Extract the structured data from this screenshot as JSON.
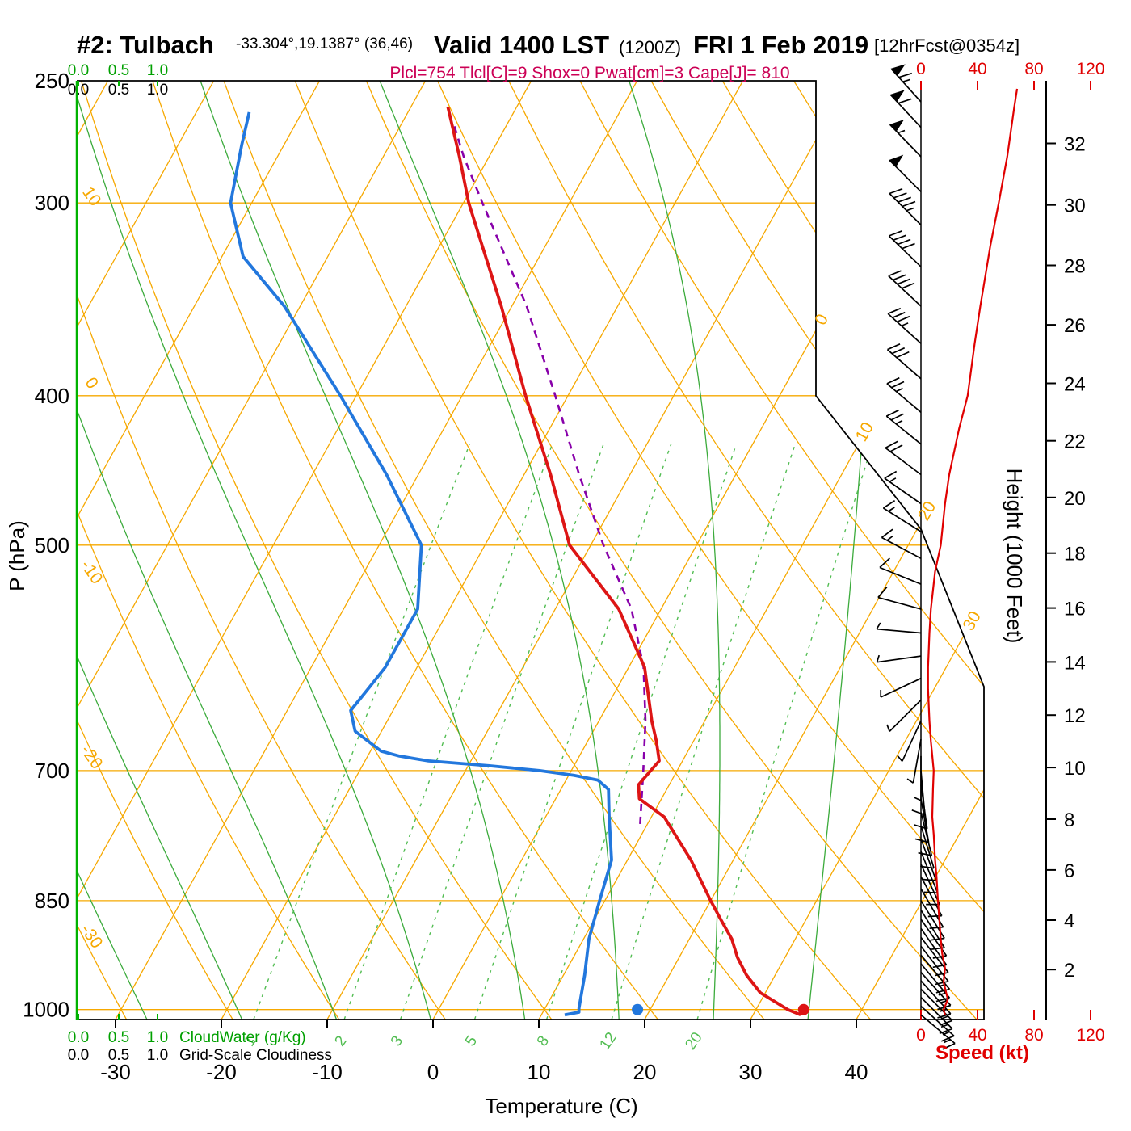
{
  "header": {
    "station": "#2: Tulbach",
    "coords": "-33.304°,19.1387° (36,46)",
    "valid": "Valid 1400 LST",
    "valid_z": "(1200Z)",
    "date": "FRI 1 Feb 2019",
    "fcst": "[12hrFcst@0354z]",
    "indices": "Plcl=754 Tlcl[C]=9 Shox=0 Pwat[cm]=3 Cape[J]= 810"
  },
  "axes": {
    "pressure_label": "P (hPa)",
    "pressure_ticks": [
      250,
      300,
      400,
      500,
      700,
      850,
      1000
    ],
    "temp_label": "Temperature (C)",
    "temp_ticks": [
      -30,
      -20,
      -10,
      0,
      10,
      20,
      30,
      40
    ],
    "height_label": "Height (1000 Feet)",
    "height_ticks": [
      2,
      4,
      6,
      8,
      10,
      12,
      14,
      16,
      18,
      20,
      22,
      24,
      26,
      28,
      30,
      32
    ],
    "speed_label": "Speed (kt)",
    "speed_ticks": [
      0,
      40,
      80,
      120
    ],
    "cloudwater_label": "CloudWater (g/Kg)",
    "cloudwater_ticks": [
      "0.0",
      "0.5",
      "1.0"
    ],
    "cloudiness_label": "Grid-Scale Cloudiness",
    "cloudiness_ticks": [
      "0.0",
      "0.5",
      "1.0"
    ],
    "dry_adiabat_labels": [
      10,
      0,
      -10,
      -20,
      -30
    ],
    "isotherm_labels": [
      0,
      10,
      20,
      30
    ]
  },
  "chart_data": {
    "type": "skewt_sounding",
    "pressure_range_hpa": [
      250,
      1015
    ],
    "temp_axis_range_c": [
      -40,
      45
    ],
    "lattice": {
      "isotherms_c": {
        "min": -90,
        "max": 40,
        "step": 10
      },
      "dry_adiabats_c": {
        "min": -40,
        "max": 120,
        "step": 10
      },
      "moist_adiabats_c": [
        -28,
        -19,
        -10,
        -1,
        8,
        17,
        26,
        35
      ],
      "mixing_ratio_gkg": [
        1,
        2,
        3,
        5,
        8,
        12,
        20
      ],
      "pressure_lines_hpa": [
        300,
        400,
        500,
        700,
        850,
        1000
      ]
    },
    "temperature_profile_c": [
      [
        1008,
        34.5
      ],
      [
        1000,
        33
      ],
      [
        975,
        29.5
      ],
      [
        950,
        27.3
      ],
      [
        925,
        25.5
      ],
      [
        900,
        24
      ],
      [
        875,
        22
      ],
      [
        850,
        20
      ],
      [
        800,
        16
      ],
      [
        750,
        11.2
      ],
      [
        730,
        7.9
      ],
      [
        715,
        7.1
      ],
      [
        700,
        7.5
      ],
      [
        690,
        7.8
      ],
      [
        670,
        6.5
      ],
      [
        650,
        5
      ],
      [
        600,
        1.5
      ],
      [
        550,
        -4
      ],
      [
        500,
        -12
      ],
      [
        450,
        -17.5
      ],
      [
        400,
        -24
      ],
      [
        350,
        -31
      ],
      [
        300,
        -39.5
      ],
      [
        280,
        -42.8
      ],
      [
        260,
        -46.5
      ]
    ],
    "dewpoint_profile_c": [
      [
        1008,
        12.2
      ],
      [
        1004,
        13.4
      ],
      [
        998,
        13.2
      ],
      [
        950,
        12
      ],
      [
        900,
        10.5
      ],
      [
        850,
        9.5
      ],
      [
        800,
        8.5
      ],
      [
        750,
        6
      ],
      [
        720,
        4.5
      ],
      [
        710,
        3
      ],
      [
        705,
        0.5
      ],
      [
        700,
        -3
      ],
      [
        695,
        -8
      ],
      [
        690,
        -14
      ],
      [
        685,
        -17
      ],
      [
        680,
        -19
      ],
      [
        660,
        -22.5
      ],
      [
        640,
        -24
      ],
      [
        620,
        -23.5
      ],
      [
        600,
        -23
      ],
      [
        550,
        -23
      ],
      [
        500,
        -26
      ],
      [
        450,
        -33
      ],
      [
        400,
        -41.5
      ],
      [
        350,
        -51.5
      ],
      [
        325,
        -58
      ],
      [
        300,
        -62
      ],
      [
        275,
        -64
      ],
      [
        262,
        -65
      ]
    ],
    "parcel_profile_c": [
      [
        758,
        9.3
      ],
      [
        700,
        6.8
      ],
      [
        650,
        4.4
      ],
      [
        600,
        1.4
      ],
      [
        550,
        -2.8
      ],
      [
        500,
        -8.8
      ],
      [
        450,
        -14.8
      ],
      [
        400,
        -21.2
      ],
      [
        350,
        -28.6
      ],
      [
        300,
        -38.2
      ],
      [
        280,
        -42.4
      ],
      [
        266,
        -45.2
      ]
    ],
    "surface_temperature_point": {
      "p": 1000,
      "t": 34.5
    },
    "surface_dewpoint_point": {
      "p": 1000,
      "t": 18.8
    },
    "wind_speed_profile_kt": [
      [
        1008,
        17
      ],
      [
        1000,
        16
      ],
      [
        985,
        19
      ],
      [
        960,
        16
      ],
      [
        940,
        17
      ],
      [
        920,
        15
      ],
      [
        900,
        14
      ],
      [
        875,
        13
      ],
      [
        850,
        12
      ],
      [
        820,
        11
      ],
      [
        800,
        10
      ],
      [
        770,
        9
      ],
      [
        750,
        8
      ],
      [
        720,
        8.5
      ],
      [
        700,
        9
      ],
      [
        670,
        7
      ],
      [
        650,
        6
      ],
      [
        620,
        5
      ],
      [
        600,
        5
      ],
      [
        570,
        6
      ],
      [
        550,
        7
      ],
      [
        520,
        10
      ],
      [
        500,
        14
      ],
      [
        470,
        17
      ],
      [
        450,
        20
      ],
      [
        420,
        27
      ],
      [
        400,
        33
      ],
      [
        370,
        38
      ],
      [
        350,
        42
      ],
      [
        320,
        49
      ],
      [
        300,
        55
      ],
      [
        280,
        61
      ],
      [
        260,
        66
      ],
      [
        253,
        68
      ]
    ],
    "wind_barbs": [
      [
        1008,
        130,
        15
      ],
      [
        995,
        132,
        16
      ],
      [
        982,
        135,
        15
      ],
      [
        970,
        135,
        15
      ],
      [
        958,
        138,
        14
      ],
      [
        946,
        138,
        14
      ],
      [
        934,
        140,
        13
      ],
      [
        922,
        140,
        13
      ],
      [
        910,
        142,
        12
      ],
      [
        898,
        142,
        12
      ],
      [
        886,
        145,
        12
      ],
      [
        874,
        145,
        11
      ],
      [
        862,
        148,
        11
      ],
      [
        850,
        148,
        10
      ],
      [
        835,
        150,
        10
      ],
      [
        820,
        152,
        10
      ],
      [
        805,
        155,
        9
      ],
      [
        790,
        158,
        9
      ],
      [
        775,
        160,
        8
      ],
      [
        760,
        163,
        8
      ],
      [
        745,
        166,
        8
      ],
      [
        730,
        170,
        9
      ],
      [
        715,
        172,
        9
      ],
      [
        700,
        175,
        9
      ],
      [
        685,
        180,
        7
      ],
      [
        668,
        190,
        6
      ],
      [
        650,
        205,
        5
      ],
      [
        630,
        225,
        5
      ],
      [
        610,
        245,
        5
      ],
      [
        590,
        262,
        6
      ],
      [
        570,
        275,
        7
      ],
      [
        550,
        285,
        8
      ],
      [
        530,
        292,
        10
      ],
      [
        510,
        298,
        13
      ],
      [
        490,
        302,
        15
      ],
      [
        470,
        305,
        17
      ],
      [
        450,
        307,
        20
      ],
      [
        430,
        309,
        23
      ],
      [
        410,
        310,
        26
      ],
      [
        390,
        311,
        30
      ],
      [
        370,
        312,
        34
      ],
      [
        350,
        313,
        38
      ],
      [
        330,
        314,
        42
      ],
      [
        310,
        315,
        47
      ],
      [
        295,
        315,
        51
      ],
      [
        280,
        316,
        56
      ],
      [
        268,
        317,
        61
      ],
      [
        258,
        318,
        65
      ]
    ]
  },
  "colors": {
    "lattice_orange": "#f6a800",
    "moist_green": "#3cab3c",
    "mixing_green": "#52bd52",
    "temperature_red": "#dd1515",
    "dewpoint_blue": "#2277dd",
    "parcel_purple": "#8800aa",
    "indices_magenta": "#cc0055",
    "speed_red": "#e00000",
    "cloudwater_green": "#00b200"
  }
}
